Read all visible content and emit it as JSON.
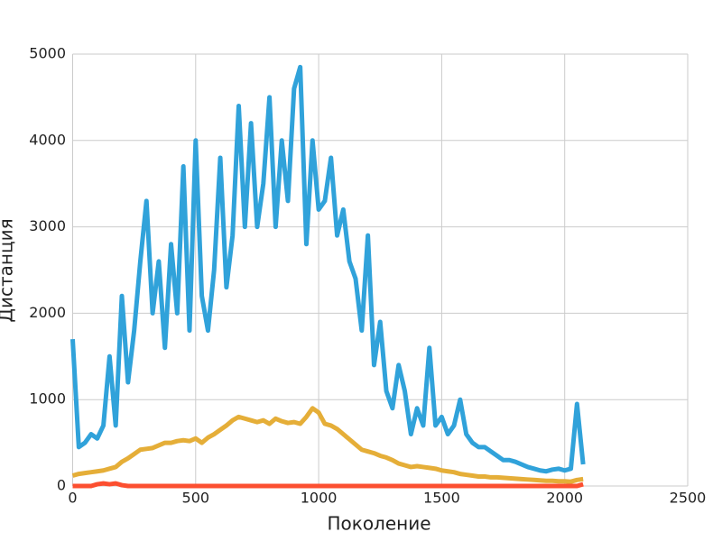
{
  "chart_data": {
    "type": "line",
    "x_label": "Поколение",
    "y_label": "Дистанция",
    "x": [
      0,
      25,
      50,
      75,
      100,
      125,
      150,
      175,
      200,
      225,
      250,
      275,
      300,
      325,
      350,
      375,
      400,
      425,
      450,
      475,
      500,
      525,
      550,
      575,
      600,
      625,
      650,
      675,
      700,
      725,
      750,
      775,
      800,
      825,
      850,
      875,
      900,
      925,
      950,
      975,
      1000,
      1025,
      1050,
      1075,
      1100,
      1125,
      1150,
      1175,
      1200,
      1225,
      1250,
      1275,
      1300,
      1325,
      1350,
      1375,
      1400,
      1425,
      1450,
      1475,
      1500,
      1525,
      1550,
      1575,
      1600,
      1625,
      1650,
      1675,
      1700,
      1725,
      1750,
      1775,
      1800,
      1825,
      1850,
      1875,
      1900,
      1925,
      1950,
      1975,
      2000,
      2025,
      2050,
      2075
    ],
    "series": [
      {
        "color": "#30a2da",
        "values": [
          1700,
          450,
          500,
          600,
          550,
          700,
          1500,
          700,
          2200,
          1200,
          1800,
          2600,
          3300,
          2000,
          2600,
          1600,
          2800,
          2000,
          3700,
          1800,
          4000,
          2200,
          1800,
          2500,
          3800,
          2300,
          2900,
          4400,
          3000,
          4200,
          3000,
          3500,
          4500,
          3000,
          4000,
          3300,
          4600,
          4850,
          2800,
          4000,
          3200,
          3300,
          3800,
          2900,
          3200,
          2600,
          2400,
          1800,
          2900,
          1400,
          1900,
          1100,
          900,
          1400,
          1100,
          600,
          900,
          700,
          1600,
          700,
          800,
          600,
          700,
          1000,
          600,
          500,
          450,
          450,
          400,
          350,
          300,
          300,
          280,
          250,
          220,
          200,
          180,
          170,
          190,
          200,
          180,
          200,
          950,
          250
        ]
      },
      {
        "color": "#e5ae38",
        "values": [
          120,
          140,
          150,
          160,
          170,
          180,
          200,
          220,
          280,
          320,
          370,
          420,
          430,
          440,
          470,
          500,
          500,
          520,
          530,
          520,
          550,
          500,
          560,
          600,
          650,
          700,
          760,
          800,
          780,
          760,
          740,
          760,
          720,
          780,
          750,
          730,
          740,
          720,
          800,
          900,
          850,
          720,
          700,
          660,
          600,
          540,
          480,
          420,
          400,
          380,
          350,
          330,
          300,
          260,
          240,
          220,
          230,
          220,
          210,
          200,
          180,
          170,
          160,
          140,
          130,
          120,
          110,
          110,
          100,
          100,
          95,
          90,
          85,
          80,
          75,
          70,
          65,
          60,
          60,
          55,
          55,
          50,
          70,
          80
        ]
      },
      {
        "color": "#fc4f30",
        "values": [
          0,
          0,
          0,
          0,
          20,
          30,
          20,
          30,
          10,
          0,
          0,
          0,
          0,
          0,
          0,
          0,
          0,
          0,
          0,
          0,
          0,
          0,
          0,
          0,
          0,
          0,
          0,
          0,
          0,
          0,
          0,
          0,
          0,
          0,
          0,
          0,
          0,
          0,
          0,
          0,
          0,
          0,
          0,
          0,
          0,
          0,
          0,
          0,
          0,
          0,
          0,
          0,
          0,
          0,
          0,
          0,
          0,
          0,
          0,
          0,
          0,
          0,
          0,
          0,
          0,
          0,
          0,
          0,
          0,
          0,
          0,
          0,
          0,
          0,
          0,
          0,
          0,
          0,
          0,
          0,
          0,
          0,
          0,
          20
        ]
      }
    ],
    "xlim": [
      0,
      2500
    ],
    "ylim": [
      0,
      5000
    ],
    "xticks": [
      0,
      500,
      1000,
      1500,
      2000,
      2500
    ],
    "yticks": [
      0,
      1000,
      2000,
      3000,
      4000,
      5000
    ],
    "grid": true
  }
}
